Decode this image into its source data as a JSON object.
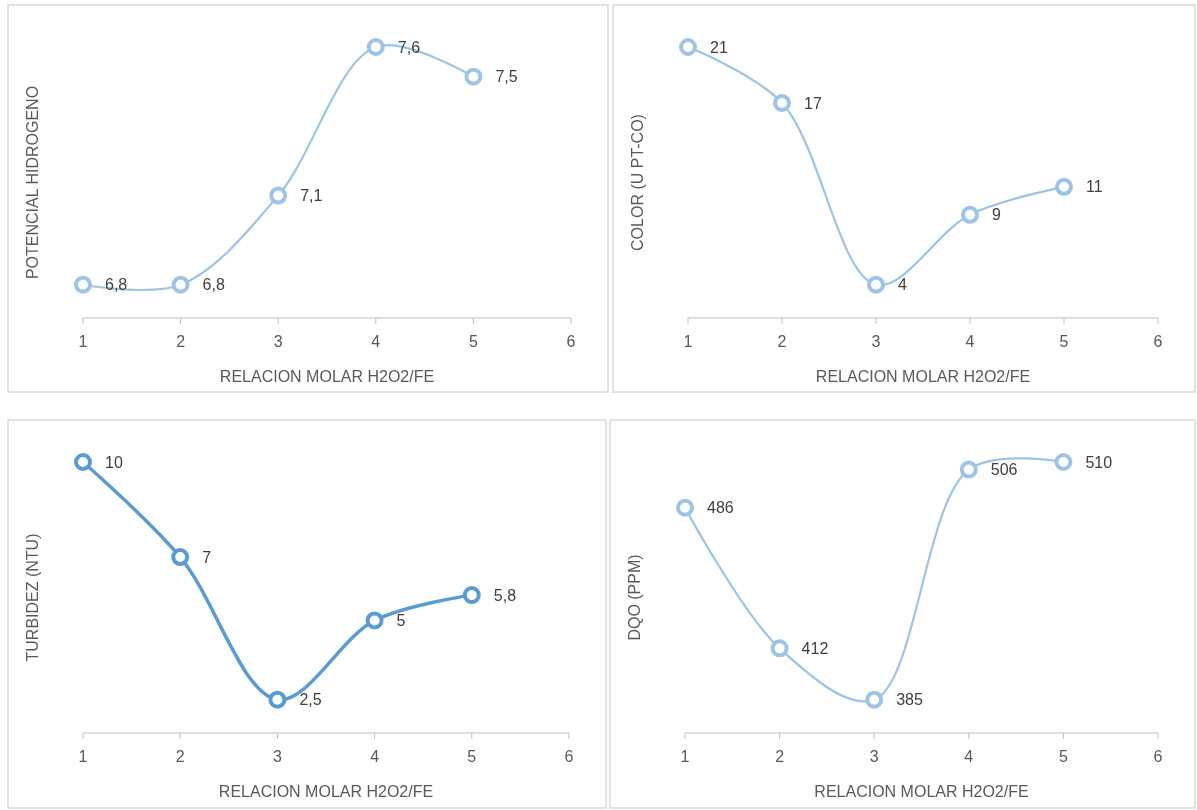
{
  "chart_data": [
    {
      "type": "line",
      "x": [
        1,
        2,
        3,
        4,
        5
      ],
      "values": [
        6.8,
        6.8,
        7.1,
        7.6,
        7.5
      ],
      "value_labels": [
        "6,8",
        "6,8",
        "7,1",
        "7,6",
        "7,5"
      ],
      "color": "#9dc3e6",
      "xlim": [
        1,
        6
      ],
      "xticks": [
        1,
        2,
        3,
        4,
        5,
        6
      ],
      "xlabel": "RELACION MOLAR H2O2/FE",
      "ylabel": "POTENCIAL HIDROGENO",
      "marker": "circle",
      "line_style": "solid",
      "tick_labels": "x"
    },
    {
      "type": "line",
      "x": [
        1,
        2,
        3,
        4,
        5
      ],
      "values": [
        21,
        17,
        4,
        9,
        11
      ],
      "value_labels": [
        "21",
        "17",
        "4",
        "9",
        "11"
      ],
      "color": "#9dc3e6",
      "xlim": [
        1,
        6
      ],
      "xticks": [
        1,
        2,
        3,
        4,
        5,
        6
      ],
      "xlabel": "RELACION MOLAR H2O2/FE",
      "ylabel": "COLOR (U PT-CO)",
      "marker": "circle",
      "line_style": "solid",
      "tick_labels": "x"
    },
    {
      "type": "line",
      "x": [
        1,
        2,
        3,
        4,
        5
      ],
      "values": [
        10,
        7,
        2.5,
        5,
        5.8
      ],
      "value_labels": [
        "10",
        "7",
        "2,5",
        "5",
        "5,8"
      ],
      "color": "#5b9bd5",
      "xlim": [
        1,
        6
      ],
      "xticks": [
        1,
        2,
        3,
        4,
        5,
        6
      ],
      "xlabel": "RELACION MOLAR H2O2/FE",
      "ylabel": "TURBIDEZ (NTU)",
      "marker": "circle",
      "line_style": "solid",
      "tick_labels": "x"
    },
    {
      "type": "line",
      "x": [
        1,
        2,
        3,
        4,
        5
      ],
      "values": [
        486,
        412,
        385,
        506,
        510
      ],
      "value_labels": [
        "486",
        "412",
        "385",
        "506",
        "510"
      ],
      "color": "#9dc3e6",
      "xlim": [
        1,
        6
      ],
      "xticks": [
        1,
        2,
        3,
        4,
        5,
        6
      ],
      "xlabel": "RELACION MOLAR H2O2/FE",
      "ylabel": "DQO (PPM)",
      "marker": "circle",
      "line_style": "solid",
      "tick_labels": "x"
    }
  ]
}
